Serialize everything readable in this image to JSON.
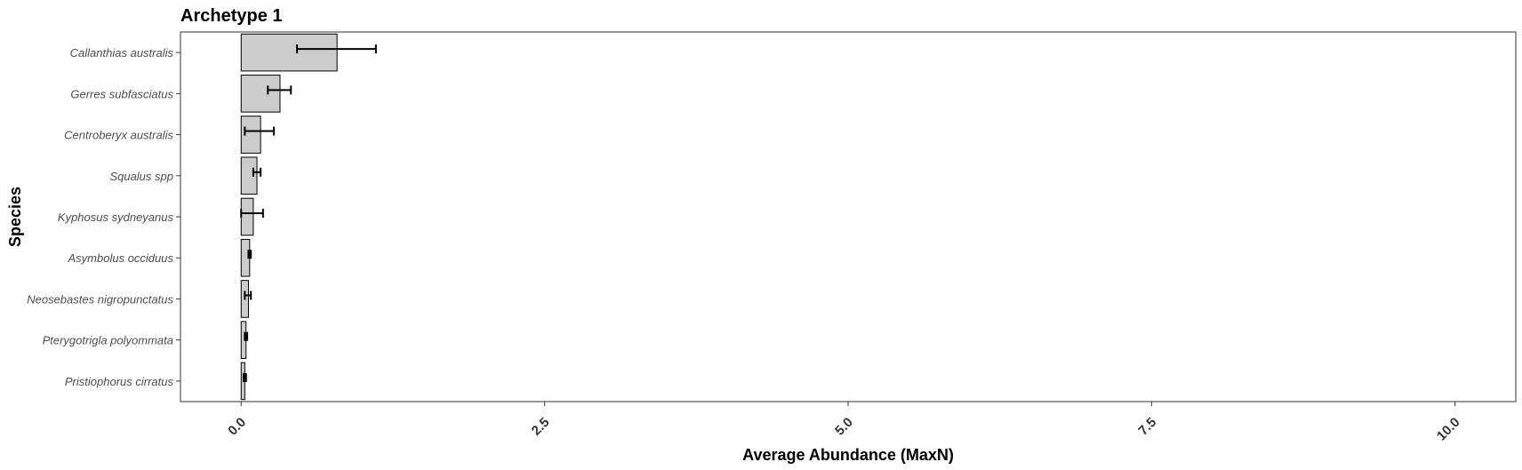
{
  "chart_data": {
    "type": "bar",
    "orientation": "horizontal",
    "title": "Archetype 1",
    "xlabel": "Average Abundance (MaxN)",
    "ylabel": "Species",
    "xlim": [
      -0.5,
      10.5
    ],
    "x_ticks": [
      "0.0",
      "2.5",
      "5.0",
      "7.5",
      "10.0"
    ],
    "x_tick_values": [
      0,
      2.5,
      5,
      7.5,
      10
    ],
    "grid": false,
    "bar_color": "#cccccc",
    "categories": [
      "Callanthias australis",
      "Gerres subfasciatus",
      "Centroberyx australis",
      "Squalus spp",
      "Kyphosus sydneyanus",
      "Asymbolus occiduus",
      "Neosebastes nigropunctatus",
      "Pterygotrigla polyommata",
      "Pristiophorus cirratus"
    ],
    "values": [
      0.79,
      0.32,
      0.16,
      0.13,
      0.1,
      0.07,
      0.06,
      0.04,
      0.03
    ],
    "error_low": [
      0.46,
      0.22,
      0.03,
      0.1,
      0.0,
      0.06,
      0.03,
      0.03,
      0.02
    ],
    "error_high": [
      1.11,
      0.41,
      0.27,
      0.16,
      0.18,
      0.08,
      0.08,
      0.05,
      0.04
    ]
  }
}
